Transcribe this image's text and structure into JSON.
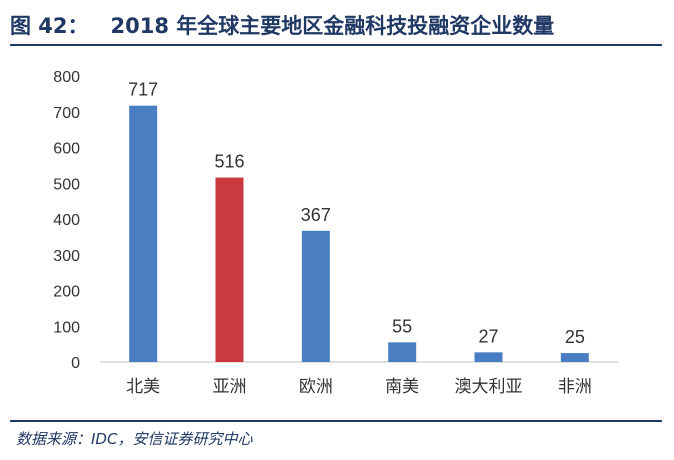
{
  "header": {
    "figure_label": "图 42：",
    "title": "2018 年全球主要地区金融科技投融资企业数量"
  },
  "footer": {
    "source": "数据来源：IDC，安信证券研究中心"
  },
  "colors": {
    "title": "#1f3864",
    "bar": "#4a7ec3",
    "highlight": "#c9393f"
  },
  "chart_data": {
    "type": "bar",
    "title": "",
    "xlabel": "",
    "ylabel": "",
    "categories": [
      "北美",
      "亚洲",
      "欧洲",
      "南美",
      "澳大利亚",
      "非洲"
    ],
    "values": [
      717,
      516,
      367,
      55,
      27,
      25
    ],
    "highlight_index": 1,
    "ylim": [
      0,
      800
    ],
    "yticks": [
      0,
      100,
      200,
      300,
      400,
      500,
      600,
      700,
      800
    ],
    "grid": false,
    "data_labels": true
  }
}
